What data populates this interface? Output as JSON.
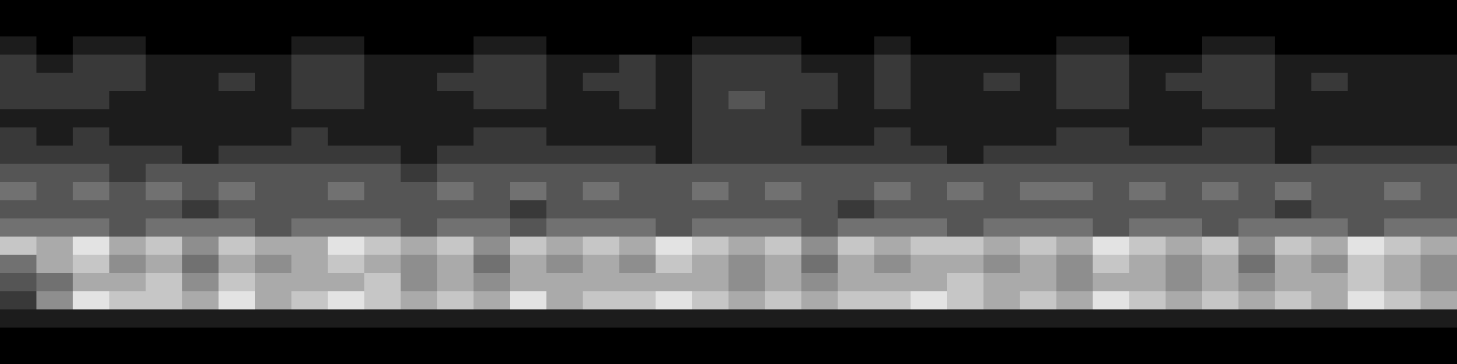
{
  "chart_data": {
    "type": "heatmap",
    "tick_labels": false,
    "zlim": [
      0,
      9
    ],
    "cells": [
      [
        0,
        0,
        0,
        0,
        0,
        0,
        0,
        0,
        0,
        0,
        0,
        0,
        0,
        0,
        0,
        0,
        0,
        0,
        0,
        0,
        0,
        0,
        0,
        0,
        0,
        0,
        0,
        0,
        0,
        0,
        0,
        0,
        0,
        0,
        0,
        0,
        0,
        0,
        0,
        0
      ],
      [
        0,
        0,
        0,
        0,
        0,
        0,
        0,
        0,
        0,
        0,
        0,
        0,
        0,
        0,
        0,
        0,
        0,
        0,
        0,
        0,
        0,
        0,
        0,
        0,
        0,
        0,
        0,
        0,
        0,
        0,
        0,
        0,
        0,
        0,
        0,
        0,
        0,
        0,
        0,
        0
      ],
      [
        1,
        0,
        1,
        1,
        0,
        0,
        0,
        0,
        1,
        1,
        0,
        0,
        0,
        1,
        1,
        0,
        0,
        0,
        0,
        1,
        1,
        1,
        0,
        0,
        1,
        0,
        0,
        0,
        0,
        1,
        1,
        0,
        0,
        1,
        1,
        0,
        0,
        0,
        0,
        0
      ],
      [
        2,
        1,
        2,
        2,
        1,
        1,
        1,
        1,
        2,
        2,
        1,
        1,
        1,
        2,
        2,
        1,
        1,
        2,
        1,
        2,
        2,
        2,
        1,
        1,
        2,
        1,
        1,
        1,
        1,
        2,
        2,
        1,
        1,
        2,
        2,
        1,
        1,
        1,
        1,
        1
      ],
      [
        2,
        2,
        2,
        2,
        1,
        1,
        2,
        1,
        2,
        2,
        1,
        1,
        2,
        2,
        2,
        1,
        2,
        2,
        1,
        2,
        2,
        2,
        2,
        1,
        2,
        1,
        1,
        2,
        1,
        2,
        2,
        1,
        2,
        2,
        2,
        1,
        2,
        1,
        1,
        1
      ],
      [
        2,
        2,
        2,
        1,
        1,
        1,
        1,
        1,
        2,
        2,
        1,
        1,
        1,
        2,
        2,
        1,
        1,
        2,
        1,
        2,
        3,
        2,
        2,
        1,
        2,
        1,
        1,
        1,
        1,
        2,
        2,
        1,
        1,
        2,
        2,
        1,
        1,
        1,
        1,
        1
      ],
      [
        1,
        1,
        1,
        1,
        1,
        1,
        1,
        1,
        1,
        1,
        1,
        1,
        1,
        1,
        1,
        1,
        1,
        1,
        1,
        2,
        2,
        2,
        1,
        1,
        1,
        1,
        1,
        1,
        1,
        1,
        1,
        1,
        1,
        1,
        1,
        1,
        1,
        1,
        1,
        1
      ],
      [
        2,
        1,
        2,
        1,
        1,
        1,
        1,
        1,
        2,
        1,
        1,
        1,
        1,
        2,
        2,
        1,
        1,
        1,
        1,
        2,
        2,
        2,
        1,
        1,
        2,
        1,
        1,
        1,
        1,
        2,
        2,
        1,
        1,
        2,
        2,
        1,
        1,
        1,
        1,
        1
      ],
      [
        2,
        2,
        2,
        2,
        2,
        1,
        2,
        2,
        2,
        2,
        2,
        1,
        2,
        2,
        2,
        2,
        2,
        2,
        1,
        2,
        2,
        2,
        2,
        2,
        2,
        2,
        1,
        2,
        2,
        2,
        2,
        2,
        2,
        2,
        2,
        1,
        2,
        2,
        2,
        2
      ],
      [
        3,
        3,
        3,
        2,
        3,
        3,
        3,
        3,
        3,
        3,
        3,
        2,
        3,
        3,
        3,
        3,
        3,
        3,
        3,
        3,
        3,
        3,
        3,
        3,
        3,
        3,
        3,
        3,
        3,
        3,
        3,
        3,
        3,
        3,
        3,
        3,
        3,
        3,
        3,
        3
      ],
      [
        4,
        3,
        4,
        3,
        4,
        3,
        4,
        3,
        3,
        4,
        3,
        3,
        4,
        3,
        4,
        3,
        4,
        3,
        3,
        4,
        3,
        4,
        3,
        3,
        4,
        3,
        4,
        3,
        4,
        4,
        3,
        4,
        3,
        4,
        3,
        4,
        3,
        3,
        4,
        3
      ],
      [
        3,
        3,
        3,
        3,
        3,
        2,
        3,
        3,
        3,
        3,
        3,
        3,
        3,
        3,
        2,
        3,
        3,
        3,
        3,
        3,
        3,
        3,
        3,
        2,
        3,
        3,
        3,
        3,
        3,
        3,
        3,
        3,
        3,
        3,
        3,
        2,
        3,
        3,
        3,
        3
      ],
      [
        4,
        4,
        4,
        3,
        4,
        4,
        4,
        3,
        4,
        4,
        4,
        3,
        4,
        4,
        3,
        4,
        4,
        4,
        3,
        4,
        4,
        4,
        3,
        4,
        4,
        4,
        3,
        4,
        4,
        4,
        3,
        4,
        4,
        3,
        4,
        4,
        4,
        3,
        4,
        4
      ],
      [
        7,
        6,
        8,
        6,
        7,
        5,
        7,
        6,
        6,
        8,
        7,
        6,
        7,
        5,
        7,
        6,
        7,
        6,
        8,
        7,
        6,
        7,
        5,
        7,
        6,
        7,
        7,
        6,
        7,
        6,
        8,
        7,
        6,
        7,
        5,
        7,
        6,
        8,
        7,
        6
      ],
      [
        4,
        6,
        7,
        5,
        6,
        4,
        6,
        5,
        6,
        7,
        6,
        5,
        6,
        4,
        6,
        5,
        6,
        5,
        7,
        6,
        5,
        6,
        4,
        6,
        5,
        6,
        6,
        5,
        6,
        5,
        7,
        6,
        5,
        6,
        4,
        6,
        5,
        7,
        6,
        5
      ],
      [
        3,
        4,
        6,
        6,
        7,
        5,
        7,
        6,
        6,
        6,
        7,
        5,
        6,
        5,
        6,
        6,
        6,
        6,
        6,
        6,
        5,
        6,
        5,
        6,
        6,
        6,
        7,
        6,
        6,
        5,
        6,
        6,
        5,
        6,
        5,
        6,
        6,
        7,
        6,
        5
      ],
      [
        2,
        5,
        8,
        7,
        7,
        6,
        8,
        6,
        7,
        8,
        7,
        6,
        7,
        6,
        8,
        6,
        7,
        7,
        8,
        7,
        6,
        7,
        6,
        7,
        7,
        8,
        7,
        6,
        7,
        6,
        8,
        7,
        6,
        7,
        6,
        7,
        6,
        8,
        7,
        6
      ],
      [
        1,
        1,
        1,
        1,
        1,
        1,
        1,
        1,
        1,
        1,
        1,
        1,
        1,
        1,
        1,
        1,
        1,
        1,
        1,
        1,
        1,
        1,
        1,
        1,
        1,
        1,
        1,
        1,
        1,
        1,
        1,
        1,
        1,
        1,
        1,
        1,
        1,
        1,
        1,
        1
      ],
      [
        0,
        0,
        0,
        0,
        0,
        0,
        0,
        0,
        0,
        0,
        0,
        0,
        0,
        0,
        0,
        0,
        0,
        0,
        0,
        0,
        0,
        0,
        0,
        0,
        0,
        0,
        0,
        0,
        0,
        0,
        0,
        0,
        0,
        0,
        0,
        0,
        0,
        0,
        0,
        0
      ],
      [
        0,
        0,
        0,
        0,
        0,
        0,
        0,
        0,
        0,
        0,
        0,
        0,
        0,
        0,
        0,
        0,
        0,
        0,
        0,
        0,
        0,
        0,
        0,
        0,
        0,
        0,
        0,
        0,
        0,
        0,
        0,
        0,
        0,
        0,
        0,
        0,
        0,
        0,
        0,
        0
      ]
    ]
  }
}
